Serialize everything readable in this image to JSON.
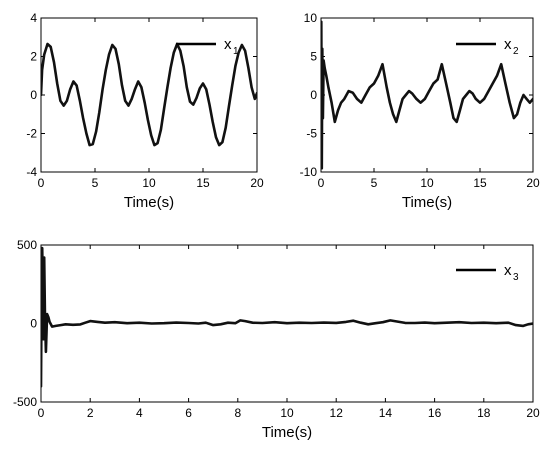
{
  "chart_data": [
    {
      "id": "x1",
      "type": "line",
      "title": "",
      "xlabel": "Time(s)",
      "ylabel": "",
      "xlim": [
        0,
        20
      ],
      "ylim": [
        -4,
        4
      ],
      "xticks": [
        0,
        5,
        10,
        15,
        20
      ],
      "yticks": [
        -4,
        -2,
        0,
        2,
        4
      ],
      "legend": {
        "base": "x",
        "sub": "1",
        "placement": "top-right"
      },
      "grid": false,
      "series": [
        {
          "x": [
            0,
            0.1,
            0.3,
            0.6,
            0.9,
            1.2,
            1.5,
            1.8,
            2.1,
            2.4,
            2.7,
            3.0,
            3.3,
            3.6,
            3.9,
            4.2,
            4.5,
            4.8,
            5.1,
            5.4,
            5.7,
            6.0,
            6.3,
            6.6,
            6.9,
            7.2,
            7.5,
            7.8,
            8.1,
            8.4,
            8.7,
            9.0,
            9.3,
            9.6,
            9.9,
            10.2,
            10.5,
            10.8,
            11.1,
            11.4,
            11.7,
            12.0,
            12.3,
            12.6,
            12.9,
            13.2,
            13.5,
            13.8,
            14.1,
            14.4,
            14.7,
            15.0,
            15.3,
            15.6,
            15.9,
            16.2,
            16.5,
            16.8,
            17.1,
            17.4,
            17.7,
            18.0,
            18.3,
            18.6,
            18.9,
            19.2,
            19.5,
            19.8,
            20.0
          ],
          "y": [
            0,
            1.3,
            2.1,
            2.65,
            2.5,
            1.7,
            0.6,
            -0.3,
            -0.55,
            -0.3,
            0.3,
            0.7,
            0.5,
            -0.3,
            -1.2,
            -2.0,
            -2.6,
            -2.55,
            -1.9,
            -0.9,
            0.3,
            1.3,
            2.1,
            2.6,
            2.4,
            1.6,
            0.5,
            -0.3,
            -0.55,
            -0.2,
            0.3,
            0.7,
            0.4,
            -0.4,
            -1.3,
            -2.1,
            -2.6,
            -2.5,
            -1.8,
            -0.7,
            0.4,
            1.4,
            2.2,
            2.65,
            2.3,
            1.5,
            0.4,
            -0.35,
            -0.5,
            -0.15,
            0.35,
            0.6,
            0.3,
            -0.5,
            -1.4,
            -2.2,
            -2.6,
            -2.45,
            -1.7,
            -0.6,
            0.5,
            1.5,
            2.2,
            2.6,
            2.3,
            1.4,
            0.4,
            -0.2,
            0.1
          ]
        }
      ]
    },
    {
      "id": "x2",
      "type": "line",
      "title": "",
      "xlabel": "Time(s)",
      "ylabel": "",
      "xlim": [
        0,
        20
      ],
      "ylim": [
        -10,
        10
      ],
      "xticks": [
        0,
        5,
        10,
        15,
        20
      ],
      "yticks": [
        -10,
        -5,
        0,
        5,
        10
      ],
      "legend": {
        "base": "x",
        "sub": "2",
        "placement": "top-right"
      },
      "grid": false,
      "series": [
        {
          "x": [
            0,
            0.03,
            0.08,
            0.12,
            0.18,
            0.25,
            0.35,
            0.5,
            0.7,
            1.0,
            1.3,
            1.6,
            1.9,
            2.2,
            2.6,
            3.0,
            3.4,
            3.8,
            4.2,
            4.6,
            5.0,
            5.4,
            5.8,
            6.2,
            6.5,
            6.8,
            7.1,
            7.4,
            7.7,
            8.0,
            8.3,
            8.6,
            9.0,
            9.4,
            9.8,
            10.2,
            10.6,
            11.0,
            11.4,
            11.8,
            12.2,
            12.5,
            12.8,
            13.1,
            13.4,
            13.7,
            14.0,
            14.3,
            14.6,
            15.0,
            15.4,
            15.8,
            16.2,
            16.6,
            17.0,
            17.4,
            17.8,
            18.2,
            18.5,
            18.8,
            19.1,
            19.4,
            19.7,
            20.0
          ],
          "y": [
            0,
            9.5,
            -9.5,
            6.0,
            -3.0,
            4.5,
            3.5,
            2.5,
            1.0,
            -1.0,
            -3.5,
            -2.0,
            -1.0,
            -0.5,
            0.5,
            0.3,
            -0.5,
            -1.0,
            0.0,
            1.0,
            1.5,
            2.5,
            4.0,
            1.0,
            -1.0,
            -2.5,
            -3.5,
            -2.0,
            -0.5,
            0.0,
            0.5,
            0.2,
            -0.5,
            -1.0,
            -0.5,
            0.5,
            1.5,
            2.0,
            4.0,
            1.5,
            -1.0,
            -3.0,
            -3.5,
            -2.0,
            -0.5,
            0.0,
            0.5,
            0.2,
            -0.5,
            -1.0,
            -0.5,
            0.5,
            1.5,
            2.5,
            4.0,
            1.5,
            -1.0,
            -3.0,
            -2.5,
            -1.0,
            0.0,
            -0.5,
            -1.0,
            -0.5
          ]
        }
      ]
    },
    {
      "id": "x3",
      "type": "line",
      "title": "",
      "xlabel": "Time(s)",
      "ylabel": "",
      "xlim": [
        0,
        20
      ],
      "ylim": [
        -500,
        500
      ],
      "xticks": [
        0,
        2,
        4,
        6,
        8,
        10,
        12,
        14,
        16,
        18,
        20
      ],
      "yticks": [
        -500,
        0,
        500
      ],
      "legend": {
        "base": "x",
        "sub": "3",
        "placement": "top-right"
      },
      "grid": false,
      "series": [
        {
          "x": [
            0,
            0.02,
            0.05,
            0.08,
            0.1,
            0.13,
            0.16,
            0.2,
            0.25,
            0.3,
            0.35,
            0.45,
            0.6,
            0.8,
            1.0,
            1.3,
            1.6,
            1.8,
            2.0,
            2.3,
            2.6,
            3.0,
            3.5,
            4.0,
            4.5,
            5.0,
            5.5,
            6.0,
            6.4,
            6.7,
            7.0,
            7.3,
            7.6,
            7.9,
            8.1,
            8.3,
            8.6,
            9.0,
            9.5,
            10.0,
            10.5,
            11.0,
            11.5,
            12.0,
            12.4,
            12.7,
            13.0,
            13.3,
            13.6,
            13.9,
            14.2,
            14.5,
            14.8,
            15.2,
            15.6,
            16.0,
            16.5,
            17.0,
            17.5,
            18.0,
            18.5,
            19.0,
            19.3,
            19.6,
            19.8,
            20.0
          ],
          "y": [
            -400,
            100,
            480,
            200,
            -100,
            420,
            80,
            -180,
            60,
            40,
            10,
            -20,
            -15,
            -10,
            -5,
            -8,
            -6,
            5,
            15,
            10,
            5,
            8,
            2,
            5,
            0,
            2,
            6,
            3,
            0,
            5,
            -10,
            -5,
            5,
            2,
            20,
            15,
            5,
            3,
            8,
            2,
            5,
            3,
            6,
            4,
            10,
            18,
            5,
            -5,
            2,
            8,
            20,
            12,
            4,
            3,
            6,
            2,
            5,
            8,
            3,
            5,
            2,
            5,
            -10,
            -15,
            -5,
            0
          ]
        }
      ]
    }
  ]
}
